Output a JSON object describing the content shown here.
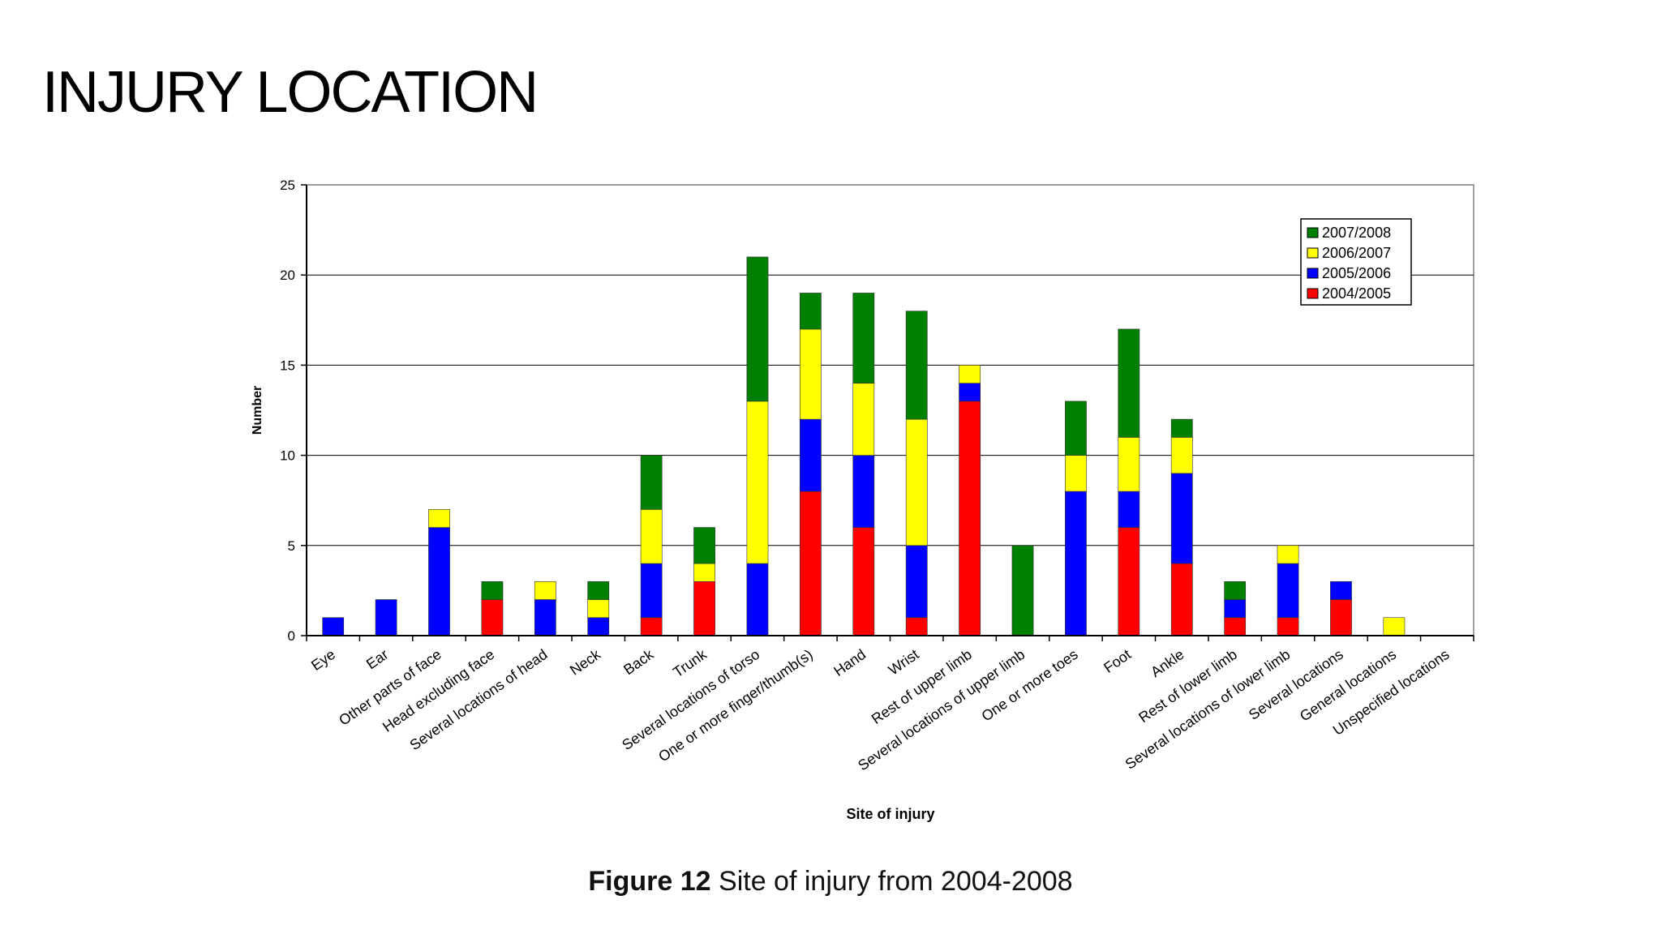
{
  "slide": {
    "title": "INJURY LOCATION"
  },
  "caption": {
    "label": "Figure 12",
    "text": "Site of injury from 2004-2008"
  },
  "chart_data": {
    "type": "bar",
    "stacked": true,
    "title": "",
    "xlabel": "Site of injury",
    "ylabel": "Number",
    "ylim": [
      0,
      25
    ],
    "yticks": [
      0,
      5,
      10,
      15,
      20,
      25
    ],
    "grid": true,
    "legend_position": "top-right",
    "categories": [
      "Eye",
      "Ear",
      "Other parts of face",
      "Head excluding face",
      "Several locations of head",
      "Neck",
      "Back",
      "Trunk",
      "Several locations of torso",
      "One or more finger/thumb(s)",
      "Hand",
      "Wrist",
      "Rest of upper limb",
      "Several locations of upper limb",
      "One or more toes",
      "Foot",
      "Ankle",
      "Rest of lower limb",
      "Several locations of lower limb",
      "Several locations",
      "General locations",
      "Unspecified locations"
    ],
    "series": [
      {
        "name": "2004/2005",
        "color": "#ff0000",
        "values": [
          0,
          0,
          0,
          2,
          0,
          0,
          1,
          3,
          0,
          8,
          6,
          1,
          13,
          0,
          0,
          6,
          4,
          1,
          1,
          2,
          0,
          0
        ]
      },
      {
        "name": "2005/2006",
        "color": "#0000ff",
        "values": [
          1,
          2,
          6,
          0,
          2,
          1,
          3,
          0,
          4,
          4,
          4,
          4,
          1,
          0,
          8,
          2,
          5,
          1,
          3,
          1,
          0,
          0
        ]
      },
      {
        "name": "2006/2007",
        "color": "#ffff00",
        "values": [
          0,
          0,
          1,
          0,
          1,
          1,
          3,
          1,
          9,
          5,
          4,
          7,
          1,
          0,
          2,
          3,
          2,
          0,
          1,
          0,
          1,
          0
        ]
      },
      {
        "name": "2007/2008",
        "color": "#008000",
        "values": [
          0,
          0,
          0,
          1,
          0,
          1,
          3,
          2,
          8,
          2,
          5,
          6,
          0,
          5,
          3,
          6,
          1,
          1,
          0,
          0,
          0,
          0
        ]
      }
    ],
    "legend_order": [
      "2007/2008",
      "2006/2007",
      "2005/2006",
      "2004/2005"
    ]
  }
}
